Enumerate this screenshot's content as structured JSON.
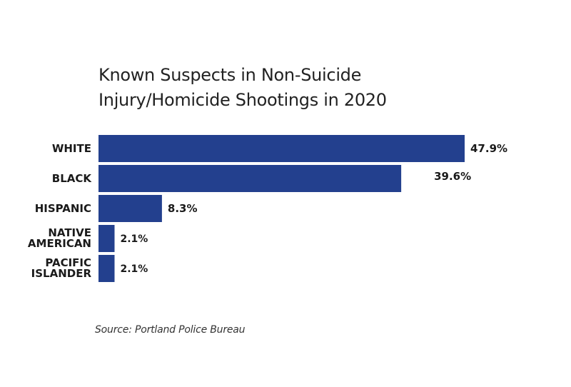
{
  "chart_data": {
    "type": "bar",
    "orientation": "horizontal",
    "title": [
      "Known Suspects in Non-Suicide",
      "Injury/Homicide Shootings in 2020"
    ],
    "categories": [
      [
        "WHITE"
      ],
      [
        "BLACK"
      ],
      [
        "HISPANIC"
      ],
      [
        "NATIVE",
        "AMERICAN"
      ],
      [
        "PACIFIC",
        "ISLANDER"
      ]
    ],
    "values": [
      47.9,
      39.6,
      8.3,
      2.1,
      2.1
    ],
    "value_labels": [
      "47.9%",
      "39.6%",
      "8.3%",
      "2.1%",
      "2.1%"
    ],
    "xlim": [
      0,
      47.9
    ],
    "grid": false,
    "legend": "none",
    "bar_color": "#23408e",
    "source": "Source: Portland Police Bureau"
  }
}
